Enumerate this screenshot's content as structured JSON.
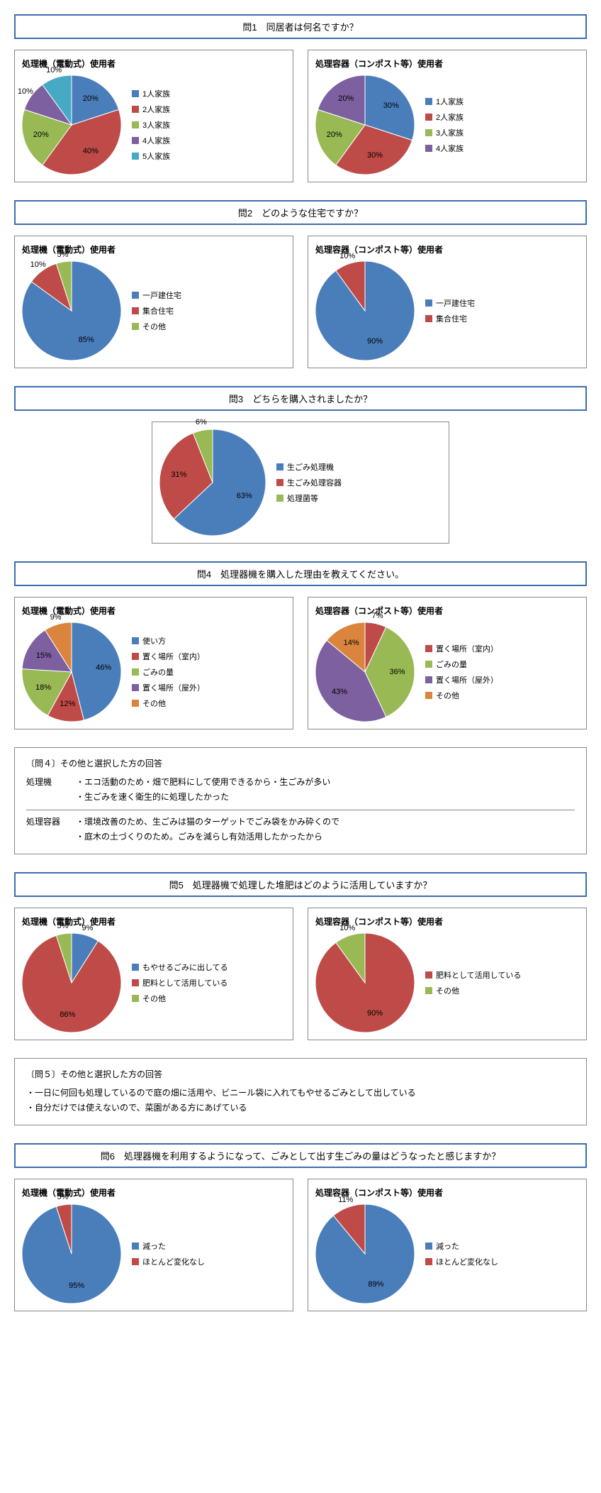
{
  "colors": {
    "blue": "#4a7ebb",
    "red": "#be4b48",
    "green": "#98b954",
    "purple": "#7d60a0",
    "cyan": "#46aac5",
    "orange": "#db843d",
    "header_border": "#3c6db0",
    "panel_border": "#888888"
  },
  "q1": {
    "header": "問1　同居者は何名ですか？",
    "left": {
      "title": "処理機（電動式）使用者",
      "slices": [
        {
          "label": "1人家族",
          "pct": 20,
          "color": "#4a7ebb"
        },
        {
          "label": "2人家族",
          "pct": 40,
          "color": "#be4b48"
        },
        {
          "label": "3人家族",
          "pct": 20,
          "color": "#98b954"
        },
        {
          "label": "4人家族",
          "pct": 10,
          "color": "#7d60a0"
        },
        {
          "label": "5人家族",
          "pct": 10,
          "color": "#46aac5"
        }
      ],
      "diameter": 140
    },
    "right": {
      "title": "処理容器（コンポスト等）使用者",
      "slices": [
        {
          "label": "1人家族",
          "pct": 30,
          "color": "#4a7ebb"
        },
        {
          "label": "2人家族",
          "pct": 30,
          "color": "#be4b48"
        },
        {
          "label": "3人家族",
          "pct": 20,
          "color": "#98b954"
        },
        {
          "label": "4人家族",
          "pct": 20,
          "color": "#7d60a0"
        }
      ],
      "diameter": 140
    }
  },
  "q2": {
    "header": "問2　どのような住宅ですか？",
    "left": {
      "title": "処理機（電動式）使用者",
      "slices": [
        {
          "label": "一戸建住宅",
          "pct": 85,
          "color": "#4a7ebb"
        },
        {
          "label": "集合住宅",
          "pct": 10,
          "color": "#be4b48"
        },
        {
          "label": "その他",
          "pct": 5,
          "color": "#98b954"
        }
      ],
      "diameter": 140
    },
    "right": {
      "title": "処理容器（コンポスト等）使用者",
      "slices": [
        {
          "label": "一戸建住宅",
          "pct": 90,
          "color": "#4a7ebb"
        },
        {
          "label": "集合住宅",
          "pct": 10,
          "color": "#be4b48"
        }
      ],
      "diameter": 140
    }
  },
  "q3": {
    "header": "問3　どちらを購入されましたか？",
    "center": {
      "title": "",
      "slices": [
        {
          "label": "生ごみ処理機",
          "pct": 63,
          "color": "#4a7ebb"
        },
        {
          "label": "生ごみ処理容器",
          "pct": 31,
          "color": "#be4b48"
        },
        {
          "label": "処理菌等",
          "pct": 6,
          "color": "#98b954"
        }
      ],
      "diameter": 150
    }
  },
  "q4": {
    "header": "問4　処理器機を購入した理由を教えてください。",
    "left": {
      "title": "処理機（電動式）使用者",
      "slices": [
        {
          "label": "使い方",
          "pct": 46,
          "color": "#4a7ebb"
        },
        {
          "label": "置く場所（室内）",
          "pct": 12,
          "color": "#be4b48"
        },
        {
          "label": "ごみの量",
          "pct": 18,
          "color": "#98b954"
        },
        {
          "label": "置く場所（屋外）",
          "pct": 15,
          "color": "#7d60a0"
        },
        {
          "label": "その他",
          "pct": 9,
          "color": "#db843d"
        }
      ],
      "diameter": 140
    },
    "right": {
      "title": "処理容器（コンポスト等）使用者",
      "slices": [
        {
          "label": "置く場所（室内）",
          "pct": 7,
          "color": "#be4b48"
        },
        {
          "label": "ごみの量",
          "pct": 36,
          "color": "#98b954"
        },
        {
          "label": "置く場所（屋外）",
          "pct": 43,
          "color": "#7d60a0"
        },
        {
          "label": "その他",
          "pct": 14,
          "color": "#db843d"
        }
      ],
      "diameter": 140
    },
    "note": {
      "title": "〔問４〕その他と選択した方の回答",
      "rows": [
        {
          "label": "処理機",
          "text": "・エコ活動のため・畑で肥料にして使用できるから・生ごみが多い"
        },
        {
          "label": "",
          "text": "・生ごみを速く衛生的に処理したかった"
        },
        {
          "divider": true
        },
        {
          "label": "処理容器",
          "text": "・環境改善のため、生ごみは猫のターゲットでごみ袋をかみ砕くので"
        },
        {
          "label": "",
          "text": "・庭木の土づくりのため。ごみを減らし有効活用したかったから"
        }
      ]
    }
  },
  "q5": {
    "header": "問5　処理器機で処理した堆肥はどのように活用していますか？",
    "left": {
      "title": "処理機（電動式）使用者",
      "slices": [
        {
          "label": "もやせるごみに出してる",
          "pct": 9,
          "color": "#4a7ebb"
        },
        {
          "label": "肥料として活用している",
          "pct": 86,
          "color": "#be4b48"
        },
        {
          "label": "その他",
          "pct": 5,
          "color": "#98b954"
        }
      ],
      "diameter": 140
    },
    "right": {
      "title": "処理容器（コンポスト等）使用者",
      "slices": [
        {
          "label": "肥料として活用している",
          "pct": 90,
          "color": "#be4b48"
        },
        {
          "label": "その他",
          "pct": 10,
          "color": "#98b954"
        }
      ],
      "diameter": 140
    },
    "note": {
      "title": "〔問５〕その他と選択した方の回答",
      "lines": [
        "・一日に何回も処理しているので庭の畑に活用や、ビニール袋に入れてもやせるごみとして出している",
        "・自分だけでは使えないので、菜園がある方にあげている"
      ]
    }
  },
  "q6": {
    "header": "問6　処理器機を利用するようになって、ごみとして出す生ごみの量はどうなったと感じますか？",
    "left": {
      "title": "処理機（電動式）使用者",
      "slices": [
        {
          "label": "減った",
          "pct": 95,
          "color": "#4a7ebb"
        },
        {
          "label": "ほとんど変化なし",
          "pct": 5,
          "color": "#be4b48"
        }
      ],
      "diameter": 140
    },
    "right": {
      "title": "処理容器（コンポスト等）使用者",
      "slices": [
        {
          "label": "減った",
          "pct": 89,
          "color": "#4a7ebb"
        },
        {
          "label": "ほとんど変化なし",
          "pct": 11,
          "color": "#be4b48"
        }
      ],
      "diameter": 140
    }
  }
}
